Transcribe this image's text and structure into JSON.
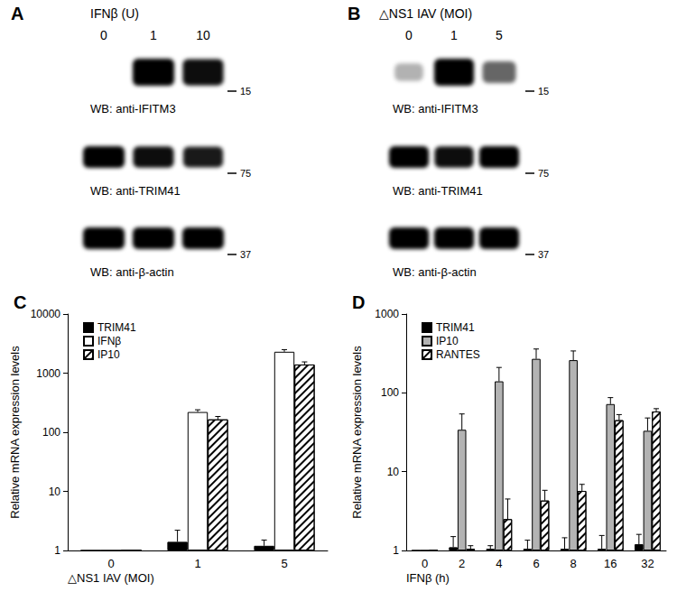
{
  "western_blots": [
    {
      "panel": "A",
      "treatment": "IFNβ (U)",
      "lanes": [
        0,
        1,
        10
      ],
      "blots": [
        {
          "label": "WB: anti-IFITM3",
          "marker": 15,
          "band_intensity": [
            0,
            1,
            0.95
          ]
        },
        {
          "label": "WB: anti-TRIM41",
          "marker": 75,
          "band_intensity": [
            1,
            0.95,
            0.9
          ]
        },
        {
          "label": "WB: anti-β-actin",
          "marker": 37,
          "band_intensity": [
            1,
            1,
            1
          ]
        }
      ]
    },
    {
      "panel": "B",
      "treatment": "△NS1 IAV (MOI)",
      "lanes": [
        0,
        1,
        5
      ],
      "blots": [
        {
          "label": "WB: anti-IFITM3",
          "marker": 15,
          "band_intensity": [
            0.3,
            1,
            0.6
          ]
        },
        {
          "label": "WB: anti-TRIM41",
          "marker": 75,
          "band_intensity": [
            1,
            0.95,
            1
          ]
        },
        {
          "label": "WB: anti-β-actin",
          "marker": 37,
          "band_intensity": [
            1,
            1,
            1
          ]
        }
      ]
    }
  ],
  "chart_data": [
    {
      "type": "bar",
      "title": "C",
      "x_label": "△NS1 IAV (MOI)",
      "y_label": "Relative mRNA expression levels",
      "categories": [
        "0",
        "1",
        "5"
      ],
      "series": [
        {
          "name": "TRIM41",
          "color": "#000000",
          "values": [
            1,
            1.4,
            1.2
          ],
          "errors": [
            0,
            0.8,
            0.3
          ]
        },
        {
          "name": "IFNβ",
          "color": "#ffffff",
          "values": [
            1,
            220,
            2300
          ],
          "errors": [
            0,
            20,
            200
          ]
        },
        {
          "name": "IP10",
          "color": "#ffffff",
          "line_style": "hatched",
          "values": [
            1,
            165,
            1400
          ],
          "errors": [
            0,
            20,
            150
          ]
        }
      ],
      "log": "y",
      "ylim": [
        1,
        10000
      ],
      "yticks": [
        1,
        10,
        100,
        1000,
        10000
      ],
      "legend": "top-left",
      "grid": false
    },
    {
      "type": "bar",
      "title": "D",
      "x_label": "IFNβ (h)",
      "y_label": "Relative mRNA expression levels",
      "categories": [
        "0",
        "2",
        "4",
        "6",
        "8",
        "16",
        "32"
      ],
      "series": [
        {
          "name": "TRIM41",
          "color": "#000000",
          "values": [
            1,
            1.1,
            1.05,
            1.05,
            1.05,
            1.05,
            1.2
          ],
          "errors": [
            0,
            0.4,
            0.1,
            0.3,
            0.4,
            0.5,
            0.4
          ]
        },
        {
          "name": "IP10",
          "color": "#b3b3b3",
          "values": [
            1,
            34,
            140,
            270,
            260,
            72,
            33
          ],
          "errors": [
            0,
            20,
            70,
            90,
            80,
            15,
            15
          ]
        },
        {
          "name": "RANTES",
          "color": "#ffffff",
          "line_style": "hatched",
          "values": [
            1,
            1.05,
            2.5,
            4.3,
            5.7,
            45,
            58
          ],
          "errors": [
            0,
            0.1,
            2.0,
            1.5,
            1.2,
            8,
            5
          ]
        }
      ],
      "log": "y",
      "ylim": [
        1,
        1000
      ],
      "yticks": [
        1,
        10,
        100,
        1000
      ],
      "legend": "top-left",
      "grid": false
    }
  ]
}
